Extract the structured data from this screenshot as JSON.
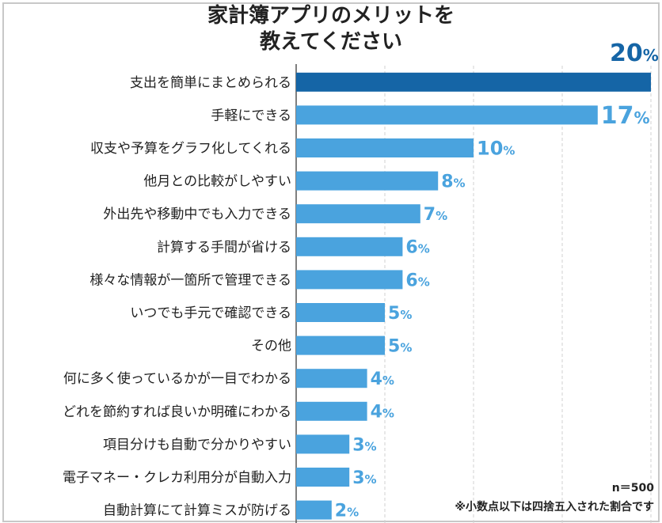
{
  "chart_data": {
    "type": "bar",
    "orientation": "horizontal",
    "title_lines": [
      "家計簿アプリのメリットを",
      "教えてください"
    ],
    "categories": [
      "支出を簡単にまとめられる",
      "手軽にできる",
      "収支や予算をグラフ化してくれる",
      "他月との比較がしやすい",
      "外出先や移動中でも入力できる",
      "計算する手間が省ける",
      "様々な情報が一箇所で管理できる",
      "いつでも手元で確認できる",
      "その他",
      "何に多く使っているかが一目でわかる",
      "どれを節約すれば良いか明確にわかる",
      "項目分けも自動で分かりやすい",
      "電子マネー・クレカ利用分が自動入力",
      "自動計算にて計算ミスが防げる"
    ],
    "values": [
      20,
      17,
      10,
      8,
      7,
      6,
      6,
      5,
      5,
      4,
      4,
      3,
      3,
      2
    ],
    "unit": "%",
    "xlim": [
      0,
      20
    ],
    "grid": "vertical dashed",
    "colors": {
      "highlight": "#1565a6",
      "bar": "#4aa3de",
      "grid": "#d0d0d0"
    }
  },
  "notes": {
    "sample": "n＝500",
    "rounding": "※小数点以下は四捨五入された割合です"
  }
}
